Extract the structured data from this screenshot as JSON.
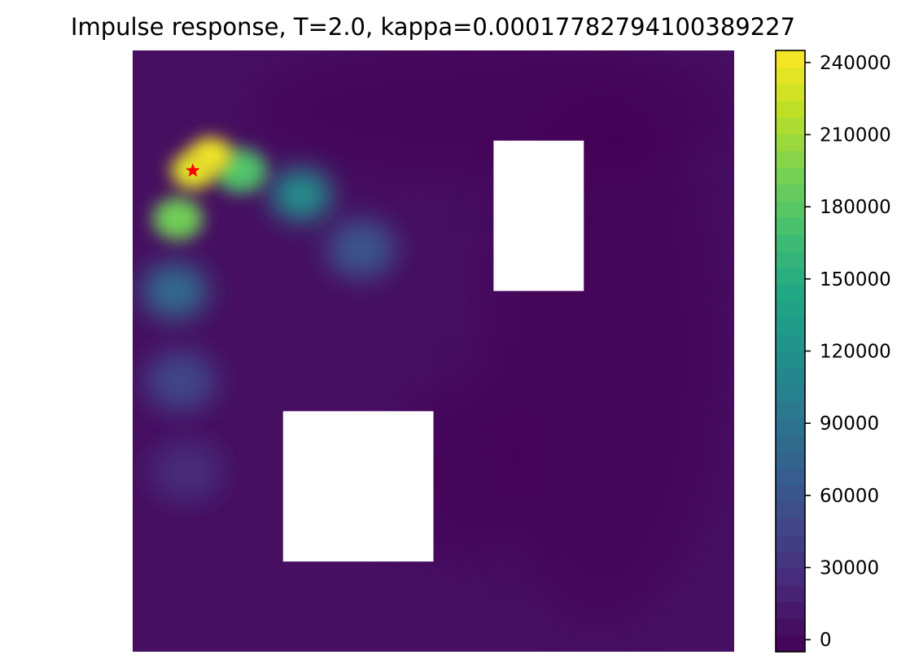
{
  "chart_data": {
    "type": "heatmap",
    "title": "Impulse response, T=2.0, kappa=0.00017782794100389227",
    "xlabel": "",
    "ylabel": "",
    "axes_visible": false,
    "domain": {
      "x": [
        0,
        1
      ],
      "y": [
        0,
        1
      ]
    },
    "colormap": "viridis",
    "colorbar": {
      "range": [
        -5000,
        245000
      ],
      "levels": 36,
      "ticks": [
        0,
        30000,
        60000,
        90000,
        120000,
        150000,
        180000,
        210000,
        240000
      ],
      "tick_labels": [
        "0",
        "30000",
        "60000",
        "90000",
        "120000",
        "150000",
        "180000",
        "210000",
        "240000"
      ]
    },
    "obstacles": [
      {
        "name": "upper-right rectangle",
        "x": [
          0.6,
          0.75
        ],
        "y": [
          0.6,
          0.85
        ]
      },
      {
        "name": "lower-left rectangle",
        "x": [
          0.25,
          0.5
        ],
        "y": [
          0.15,
          0.4
        ]
      }
    ],
    "source_point": {
      "x": 0.1,
      "y": 0.8,
      "marker": "star",
      "color": "#ff0000"
    },
    "plume_path": [
      {
        "x": 0.13,
        "y": 0.825,
        "value": 240000
      },
      {
        "x": 0.1,
        "y": 0.8,
        "value": 235000
      },
      {
        "x": 0.075,
        "y": 0.72,
        "value": 190000
      },
      {
        "x": 0.18,
        "y": 0.8,
        "value": 175000
      },
      {
        "x": 0.28,
        "y": 0.76,
        "value": 120000
      },
      {
        "x": 0.07,
        "y": 0.6,
        "value": 80000
      },
      {
        "x": 0.38,
        "y": 0.67,
        "value": 60000
      },
      {
        "x": 0.08,
        "y": 0.45,
        "value": 45000
      },
      {
        "x": 0.09,
        "y": 0.3,
        "value": 25000
      }
    ],
    "background_value": 5000
  }
}
